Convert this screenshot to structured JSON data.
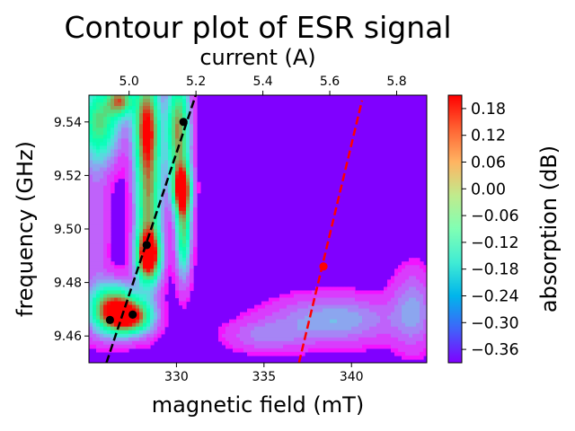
{
  "chart_data": {
    "type": "contour",
    "title": "Contour plot of ESR signal",
    "xlabel": "magnetic field (mT)",
    "ylabel": "frequency (GHz)",
    "top_xlabel": "current (A)",
    "colorbar_label": "absorption (dB)",
    "xlim": [
      325.0,
      344.3
    ],
    "ylim": [
      9.45,
      9.55
    ],
    "top_xlim": [
      4.88,
      5.89
    ],
    "colorbar_range": [
      -0.39,
      0.21
    ],
    "x_ticks": [
      330,
      335,
      340
    ],
    "x_tick_labels": [
      "330",
      "335",
      "340"
    ],
    "y_ticks": [
      9.46,
      9.48,
      9.5,
      9.52,
      9.54
    ],
    "y_tick_labels": [
      "9.46",
      "9.48",
      "9.50",
      "9.52",
      "9.54"
    ],
    "top_x_ticks": [
      5.0,
      5.2,
      5.4,
      5.6,
      5.8
    ],
    "top_x_tick_labels": [
      "5.0",
      "5.2",
      "5.4",
      "5.6",
      "5.8"
    ],
    "colorbar_ticks": [
      0.18,
      0.12,
      0.06,
      0.0,
      -0.06,
      -0.12,
      -0.18,
      -0.24,
      -0.3,
      -0.36
    ],
    "colorbar_tick_labels": [
      "0.18",
      "0.12",
      "0.06",
      "0.00",
      "−0.06",
      "−0.12",
      "−0.18",
      "−0.24",
      "−0.30",
      "−0.36"
    ],
    "colormap": "rainbow",
    "grid": false,
    "fit_lines": [
      {
        "color": "#000000",
        "style": "dashed",
        "x": [
          326.0,
          331.1
        ],
        "y": [
          9.45,
          9.55
        ]
      },
      {
        "color": "#ff0000",
        "style": "dashed",
        "x": [
          337.0,
          340.6
        ],
        "y": [
          9.45,
          9.548
        ]
      }
    ],
    "points": [
      {
        "color": "#000000",
        "x": 326.2,
        "y": 9.466
      },
      {
        "color": "#000000",
        "x": 327.5,
        "y": 9.468
      },
      {
        "color": "#000000",
        "x": 328.3,
        "y": 9.494
      },
      {
        "color": "#000000",
        "x": 330.4,
        "y": 9.54
      },
      {
        "color": "#ff0000",
        "x": 338.4,
        "y": 9.486
      }
    ],
    "contour_features": [
      {
        "x": 326.4,
        "y": 9.47,
        "value": 0.19,
        "sx": 0.9,
        "sy": 0.006
      },
      {
        "x": 327.4,
        "y": 9.467,
        "value": 0.1,
        "sx": 0.8,
        "sy": 0.004
      },
      {
        "x": 328.4,
        "y": 9.49,
        "value": 0.2,
        "sx": 0.45,
        "sy": 0.006
      },
      {
        "x": 328.4,
        "y": 9.51,
        "value": 0.06,
        "sx": 0.5,
        "sy": 0.02
      },
      {
        "x": 328.3,
        "y": 9.54,
        "value": 0.1,
        "sx": 0.5,
        "sy": 0.012
      },
      {
        "x": 330.1,
        "y": 9.537,
        "value": 0.1,
        "sx": 0.45,
        "sy": 0.014
      },
      {
        "x": 330.3,
        "y": 9.515,
        "value": 0.16,
        "sx": 0.35,
        "sy": 0.006
      },
      {
        "x": 330.4,
        "y": 9.5,
        "value": 0.0,
        "sx": 0.3,
        "sy": 0.012
      },
      {
        "x": 325.6,
        "y": 9.54,
        "value": 0.0,
        "sx": 0.8,
        "sy": 0.01
      },
      {
        "x": 326.8,
        "y": 9.548,
        "value": 0.05,
        "sx": 0.5,
        "sy": 0.004
      },
      {
        "x": 325.4,
        "y": 9.5,
        "value": -0.3,
        "sx": 0.5,
        "sy": 0.02
      },
      {
        "x": 339.0,
        "y": 9.466,
        "value": -0.24,
        "sx": 2.4,
        "sy": 0.006
      },
      {
        "x": 335.0,
        "y": 9.46,
        "value": -0.3,
        "sx": 1.5,
        "sy": 0.004
      },
      {
        "x": 343.5,
        "y": 9.47,
        "value": -0.27,
        "sx": 0.8,
        "sy": 0.01
      }
    ]
  }
}
